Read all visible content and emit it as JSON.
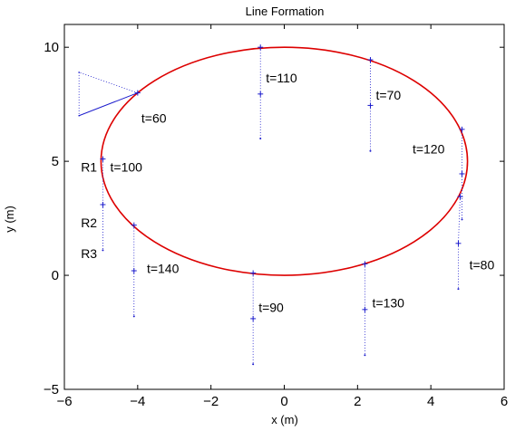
{
  "chart_data": {
    "type": "line",
    "title": "Line Formation",
    "xlabel": "x (m)",
    "ylabel": "y (m)",
    "xlim": [
      -6,
      6
    ],
    "ylim": [
      -5,
      11
    ],
    "xticks": [
      -6,
      -4,
      -2,
      0,
      2,
      4,
      6
    ],
    "yticks": [
      -5,
      0,
      5,
      10
    ],
    "xtick_labels": [
      "−6",
      "−4",
      "−2",
      "0",
      "2",
      "4",
      "6"
    ],
    "ytick_labels": [
      "−5",
      "0",
      "5",
      "10"
    ],
    "grid": false,
    "colors": {
      "path": "#dd0000",
      "robot": "#1a1acc",
      "link": "#1a1acc"
    },
    "reference_path": {
      "shape": "ellipse",
      "center": [
        0,
        5
      ],
      "radius_x": 5,
      "radius_y": 5
    },
    "snapshots": [
      {
        "label": "t=60",
        "label_pos": [
          -3.9,
          6.9
        ],
        "points": [
          [
            -5.6,
            7.0
          ],
          [
            -4.0,
            8.0
          ],
          [
            -5.6,
            8.9
          ]
        ],
        "style": "triangle"
      },
      {
        "label": "t=110",
        "label_pos": [
          -0.5,
          8.65
        ],
        "points": [
          [
            -0.65,
            10.0
          ],
          [
            -0.65,
            7.95
          ],
          [
            -0.65,
            6.0
          ]
        ],
        "style": "line"
      },
      {
        "label": "t=70",
        "label_pos": [
          2.5,
          7.9
        ],
        "points": [
          [
            2.35,
            9.45
          ],
          [
            2.35,
            7.45
          ],
          [
            2.35,
            5.45
          ]
        ],
        "style": "line"
      },
      {
        "label": "t=120",
        "label_pos": [
          3.5,
          5.55
        ],
        "points": [
          [
            4.85,
            6.4
          ],
          [
            4.85,
            4.45
          ],
          [
            4.85,
            2.45
          ]
        ],
        "style": "line"
      },
      {
        "label": "t=80",
        "label_pos": [
          5.05,
          0.45
        ],
        "points": [
          [
            4.8,
            3.45
          ],
          [
            4.75,
            1.4
          ],
          [
            4.75,
            -0.6
          ]
        ],
        "style": "line"
      },
      {
        "label": "t=100",
        "label_pos": [
          -4.75,
          4.75
        ],
        "points": [
          [
            -4.95,
            5.1
          ],
          [
            -4.95,
            3.1
          ],
          [
            -4.95,
            1.1
          ]
        ],
        "style": "line"
      },
      {
        "label": "t=140",
        "label_pos": [
          -3.75,
          0.3
        ],
        "points": [
          [
            -4.1,
            2.2
          ],
          [
            -4.1,
            0.2
          ],
          [
            -4.1,
            -1.8
          ]
        ],
        "style": "line"
      },
      {
        "label": "t=90",
        "label_pos": [
          -0.7,
          -1.4
        ],
        "points": [
          [
            -0.85,
            0.1
          ],
          [
            -0.85,
            -1.9
          ],
          [
            -0.85,
            -3.9
          ]
        ],
        "style": "line"
      },
      {
        "label": "t=130",
        "label_pos": [
          2.4,
          -1.2
        ],
        "points": [
          [
            2.2,
            0.5
          ],
          [
            2.2,
            -1.5
          ],
          [
            2.2,
            -3.5
          ]
        ],
        "style": "line"
      }
    ],
    "robot_labels": [
      {
        "label": "R1",
        "pos": [
          -5.55,
          4.75
        ]
      },
      {
        "label": "R2",
        "pos": [
          -5.55,
          2.3
        ]
      },
      {
        "label": "R3",
        "pos": [
          -5.55,
          0.95
        ]
      }
    ]
  }
}
